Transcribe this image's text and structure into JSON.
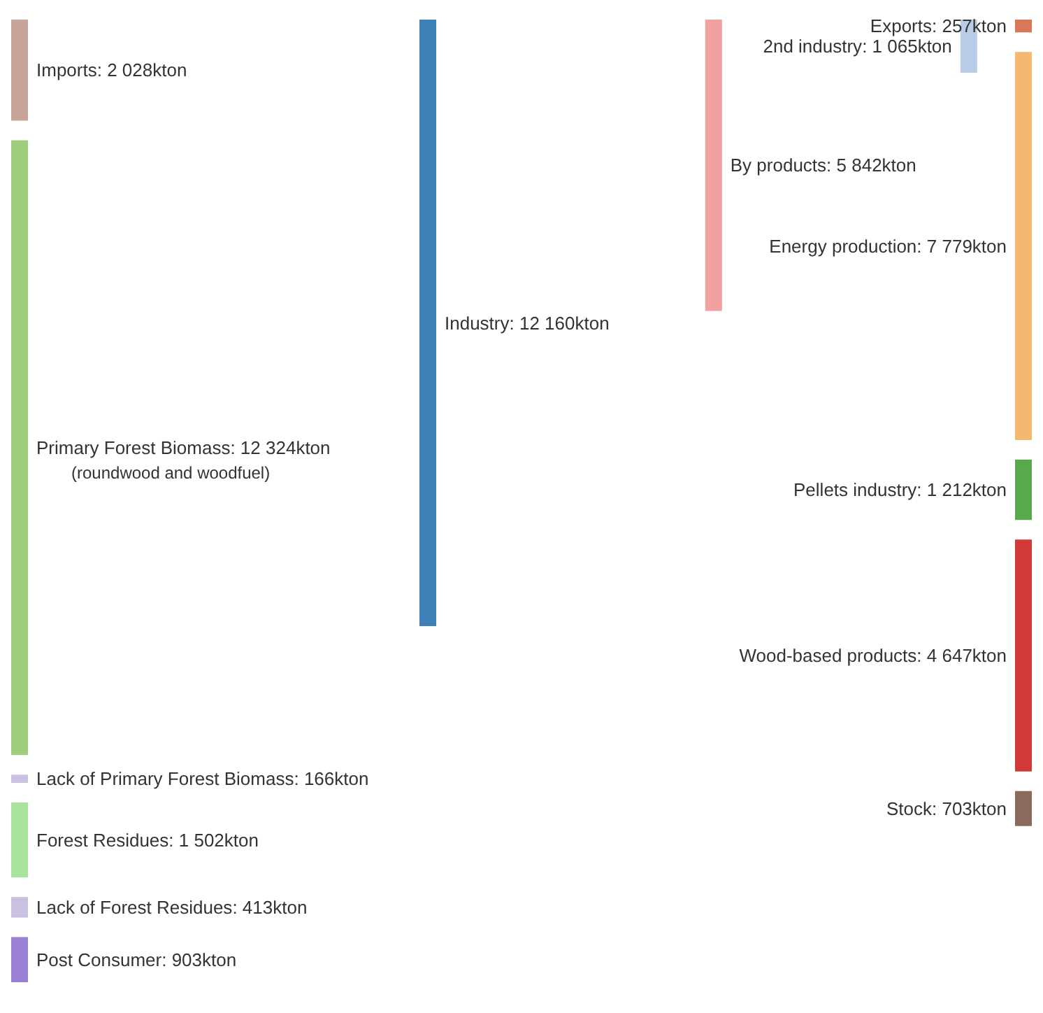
{
  "chart_data": {
    "type": "other",
    "categories": [
      "Imports",
      "Primary Forest Biomass",
      "Lack of Primary Forest Biomass",
      "Forest Residues",
      "Lack of Forest Residues",
      "Post Consumer",
      "Industry",
      "By products",
      "2nd industry",
      "Exports",
      "Energy production",
      "Pellets industry",
      "Wood-based products",
      "Stock"
    ],
    "colors": [
      "#c8a49a",
      "#9ccc7c",
      "#c9c0e2",
      "#a9e39e",
      "#c9c0e2",
      "#9b7fd2",
      "#3f7fb8",
      "#f2a0a0",
      "#b9cde9",
      "#d9775a",
      "#f4b870",
      "#58a84c",
      "#d23a3a",
      "#8a6a5a"
    ],
    "series": [
      {
        "values": [
          2028,
          12324,
          166,
          1502,
          413,
          903,
          null,
          null,
          null,
          null,
          null,
          null,
          null,
          null
        ],
        "value_labels": [
          ": 2 028kton",
          ": 12 324kton",
          ": 166kton",
          ": 1 502kton",
          ": 413kton",
          ": 903kton",
          null,
          null,
          null,
          null,
          null,
          null,
          null,
          null
        ]
      },
      {
        "values": [
          null,
          null,
          null,
          null,
          null,
          null,
          12160,
          null,
          null,
          null,
          null,
          null,
          null,
          null
        ],
        "value_labels": [
          null,
          null,
          null,
          null,
          null,
          null,
          ": 12 160kton",
          null,
          null,
          null,
          null,
          null,
          null,
          null
        ]
      },
      {
        "values": [
          null,
          null,
          null,
          null,
          null,
          null,
          null,
          5842,
          null,
          null,
          null,
          null,
          null,
          null
        ],
        "value_labels": [
          null,
          null,
          null,
          null,
          null,
          null,
          null,
          ": 5 842kton",
          null,
          null,
          null,
          null,
          null,
          null
        ]
      },
      {
        "values": [
          null,
          null,
          null,
          null,
          null,
          null,
          null,
          null,
          1065,
          null,
          null,
          null,
          null,
          null
        ],
        "value_labels": [
          null,
          null,
          null,
          null,
          null,
          null,
          null,
          null,
          ": 1 065kton",
          null,
          null,
          null,
          null,
          null
        ]
      },
      {
        "values": [
          null,
          null,
          null,
          null,
          null,
          null,
          null,
          null,
          null,
          257,
          7779,
          1212,
          4647,
          703
        ],
        "value_labels": [
          null,
          null,
          null,
          null,
          null,
          null,
          null,
          null,
          null,
          ": 257kton",
          ": 7 779kton",
          ": 1 212kton",
          ": 4 647kton",
          ": 703kton"
        ]
      }
    ],
    "annotations": [
      "(roundwood and woodfuel)"
    ]
  }
}
